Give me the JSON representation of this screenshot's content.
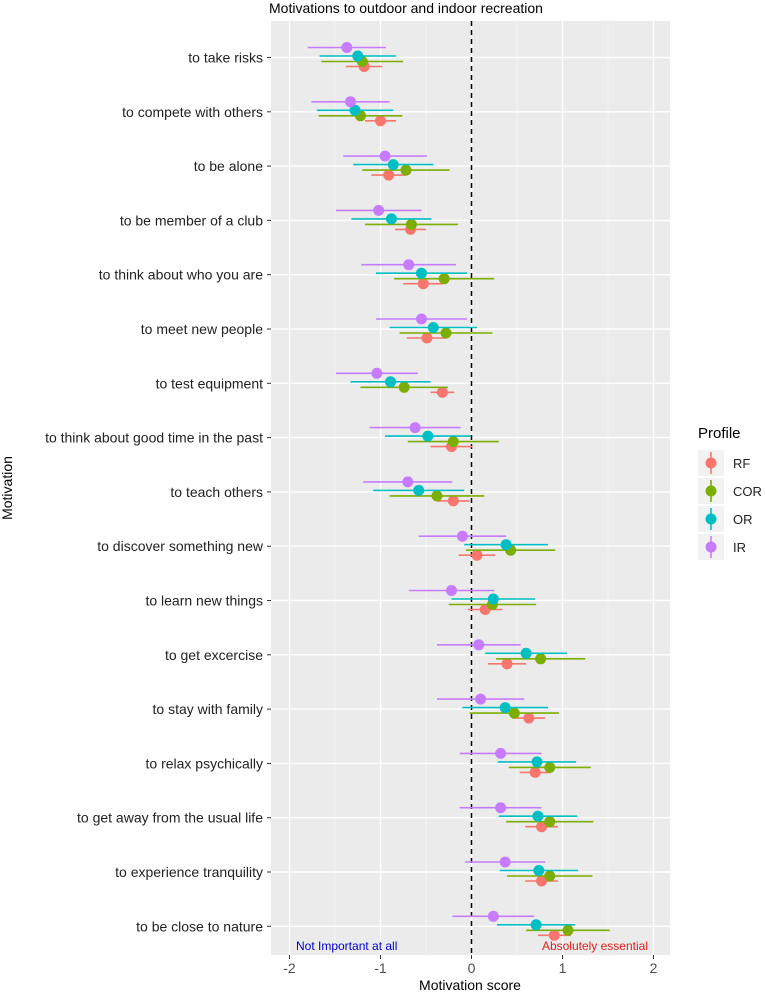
{
  "chart_data": {
    "type": "scatter",
    "title": "Motivations to outdoor and indoor recreation",
    "xlabel": "Motivation score",
    "ylabel": "Motivation",
    "xlim": [
      -2.2,
      2.2
    ],
    "x_ticks": [
      -2,
      -1,
      0,
      1,
      2
    ],
    "x_tick_labels": [
      "-2",
      "-1",
      "0",
      "1",
      "2"
    ],
    "reference_line": 0,
    "annotations": {
      "left": "Not Important at all",
      "right": "Absolutely essential"
    },
    "legend": {
      "title": "Profile",
      "position": "right",
      "entries": [
        "RF",
        "COR",
        "OR",
        "IR"
      ]
    },
    "series_colors": {
      "RF": "#f8766d",
      "COR": "#7cae00",
      "OR": "#00bfc4",
      "IR": "#c77cff"
    },
    "categories": [
      "to take risks",
      "to compete with others",
      "to be alone",
      "to be member of a club",
      "to think about who you are",
      "to meet new people",
      "to test equipment",
      "to think about good time in the past",
      "to teach others",
      "to discover something new",
      "to learn new things",
      "to get excercise",
      "to stay with family",
      "to relax psychically",
      "to get away from the usual life",
      "to experience tranquility",
      "to be close to nature"
    ],
    "series": [
      {
        "name": "RF",
        "values": [
          -1.18,
          -1.0,
          -0.91,
          -0.67,
          -0.53,
          -0.49,
          -0.32,
          -0.22,
          -0.2,
          0.06,
          0.15,
          0.39,
          0.63,
          0.7,
          0.77,
          0.77,
          0.91
        ],
        "lower": [
          -1.38,
          -1.17,
          -1.1,
          -0.84,
          -0.75,
          -0.71,
          -0.45,
          -0.45,
          -0.38,
          -0.14,
          -0.04,
          0.18,
          0.45,
          0.53,
          0.59,
          0.59,
          0.73
        ],
        "upper": [
          -0.98,
          -0.83,
          -0.72,
          -0.5,
          -0.31,
          -0.27,
          -0.19,
          0.01,
          -0.02,
          0.26,
          0.34,
          0.6,
          0.81,
          0.87,
          0.95,
          0.95,
          1.09
        ]
      },
      {
        "name": "COR",
        "values": [
          -1.2,
          -1.22,
          -0.72,
          -0.66,
          -0.3,
          -0.28,
          -0.74,
          -0.2,
          -0.38,
          0.43,
          0.23,
          0.76,
          0.47,
          0.86,
          0.86,
          0.86,
          1.06
        ],
        "lower": [
          -1.65,
          -1.68,
          -1.2,
          -1.17,
          -0.85,
          -0.79,
          -1.22,
          -0.7,
          -0.9,
          -0.06,
          -0.25,
          0.27,
          -0.02,
          0.41,
          0.38,
          0.39,
          0.6
        ],
        "upper": [
          -0.75,
          -0.76,
          -0.24,
          -0.15,
          0.25,
          0.23,
          -0.26,
          0.3,
          0.14,
          0.92,
          0.71,
          1.25,
          0.96,
          1.31,
          1.34,
          1.33,
          1.52
        ]
      },
      {
        "name": "OR",
        "values": [
          -1.25,
          -1.28,
          -0.86,
          -0.88,
          -0.55,
          -0.42,
          -0.89,
          -0.48,
          -0.58,
          0.38,
          0.24,
          0.6,
          0.37,
          0.72,
          0.73,
          0.74,
          0.71
        ],
        "lower": [
          -1.67,
          -1.7,
          -1.3,
          -1.32,
          -1.05,
          -0.9,
          -1.33,
          -0.95,
          -1.08,
          -0.08,
          -0.22,
          0.15,
          -0.1,
          0.29,
          0.3,
          0.31,
          0.28
        ],
        "upper": [
          -0.83,
          -0.86,
          -0.42,
          -0.44,
          -0.05,
          0.06,
          -0.45,
          -0.01,
          -0.08,
          0.84,
          0.7,
          1.05,
          0.84,
          1.15,
          1.16,
          1.17,
          1.14
        ]
      },
      {
        "name": "IR",
        "values": [
          -1.37,
          -1.33,
          -0.95,
          -1.02,
          -0.69,
          -0.55,
          -1.04,
          -0.62,
          -0.7,
          -0.1,
          -0.22,
          0.08,
          0.1,
          0.32,
          0.32,
          0.37,
          0.24
        ],
        "lower": [
          -1.8,
          -1.76,
          -1.41,
          -1.49,
          -1.21,
          -1.05,
          -1.49,
          -1.12,
          -1.19,
          -0.58,
          -0.69,
          -0.38,
          -0.38,
          -0.13,
          -0.13,
          -0.07,
          -0.21
        ],
        "upper": [
          -0.94,
          -0.9,
          -0.49,
          -0.55,
          -0.17,
          -0.05,
          -0.59,
          -0.12,
          -0.21,
          0.38,
          0.25,
          0.54,
          0.58,
          0.77,
          0.77,
          0.81,
          0.69
        ]
      }
    ]
  }
}
